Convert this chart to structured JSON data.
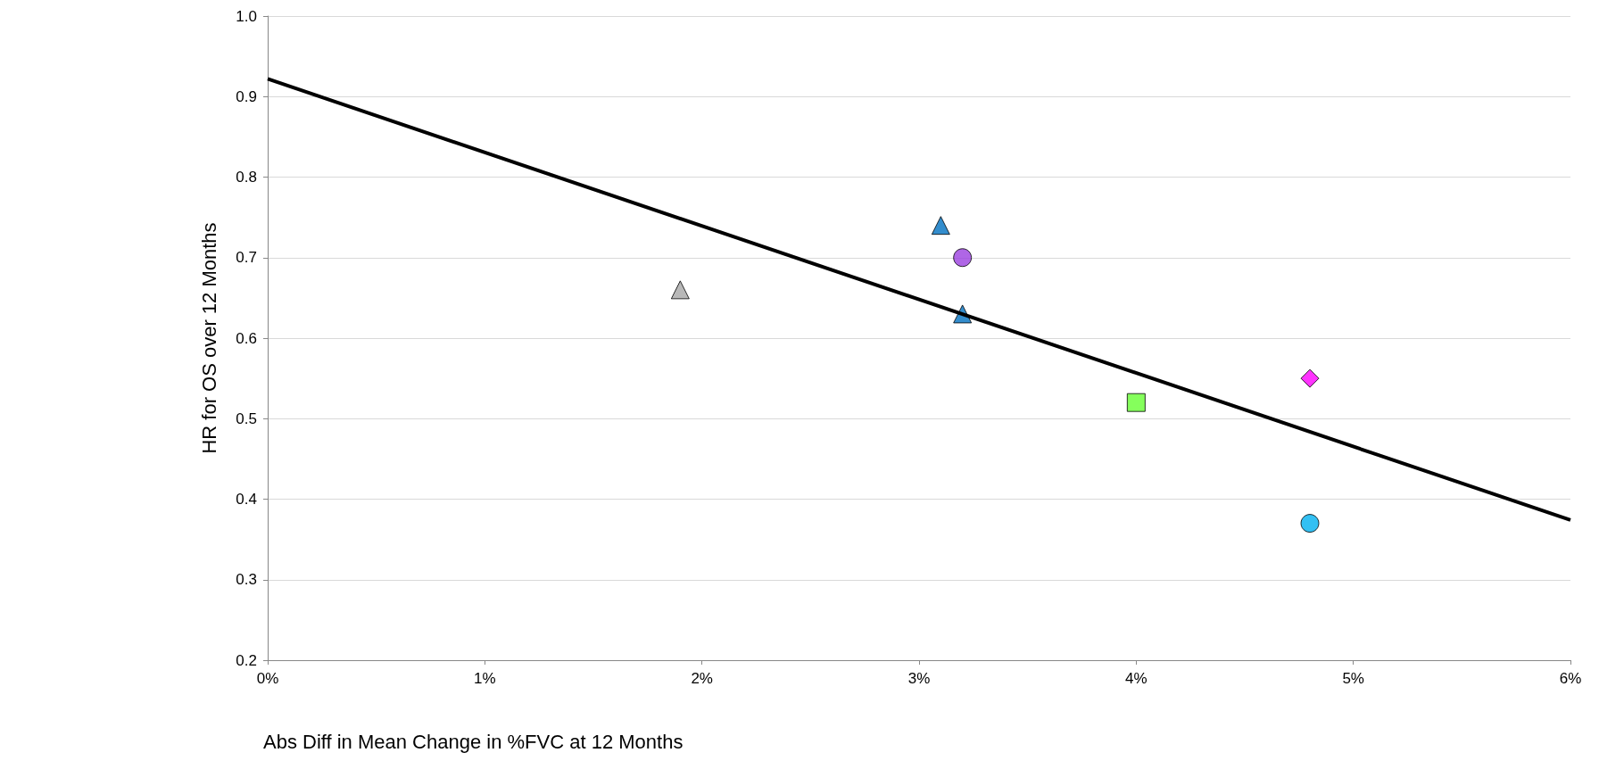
{
  "chart_data": {
    "type": "scatter",
    "xlabel": "Abs Diff in Mean Change in %FVC at 12 Months",
    "ylabel": "HR for OS over 12 Months",
    "xlim": [
      0,
      6
    ],
    "xticks": [
      {
        "value": 0,
        "label": "0%"
      },
      {
        "value": 1,
        "label": "1%"
      },
      {
        "value": 2,
        "label": "2%"
      },
      {
        "value": 3,
        "label": "3%"
      },
      {
        "value": 4,
        "label": "4%"
      },
      {
        "value": 5,
        "label": "5%"
      },
      {
        "value": 6,
        "label": "6%"
      }
    ],
    "ylim": [
      0.2,
      1.0
    ],
    "yticks": [
      0.2,
      0.3,
      0.4,
      0.5,
      0.6,
      0.7,
      0.8,
      0.9,
      {
        "value": 1.0,
        "label": "1.0"
      }
    ],
    "grid": "y",
    "series": [
      {
        "type": "line",
        "x": [
          0,
          6
        ],
        "values": [
          0.922,
          0.374
        ],
        "color": "#000000",
        "marker": "none",
        "line_style": "solid"
      },
      {
        "x": [
          1.9
        ],
        "values": [
          0.66
        ],
        "color": "#a6a6a6",
        "marker": "triangle"
      },
      {
        "x": [
          3.1
        ],
        "values": [
          0.74
        ],
        "color": "#0070c0",
        "marker": "triangle"
      },
      {
        "x": [
          3.2
        ],
        "values": [
          0.7
        ],
        "color": "#9b40e0",
        "marker": "circle"
      },
      {
        "x": [
          3.2
        ],
        "values": [
          0.63
        ],
        "color": "#0070c0",
        "marker": "triangle"
      },
      {
        "x": [
          4.0
        ],
        "values": [
          0.52
        ],
        "color": "#66ff33",
        "marker": "square"
      },
      {
        "x": [
          4.8
        ],
        "values": [
          0.55
        ],
        "color": "#ff00ff",
        "marker": "diamond"
      },
      {
        "x": [
          4.8
        ],
        "values": [
          0.37
        ],
        "color": "#00b0f0",
        "marker": "circle"
      }
    ]
  }
}
